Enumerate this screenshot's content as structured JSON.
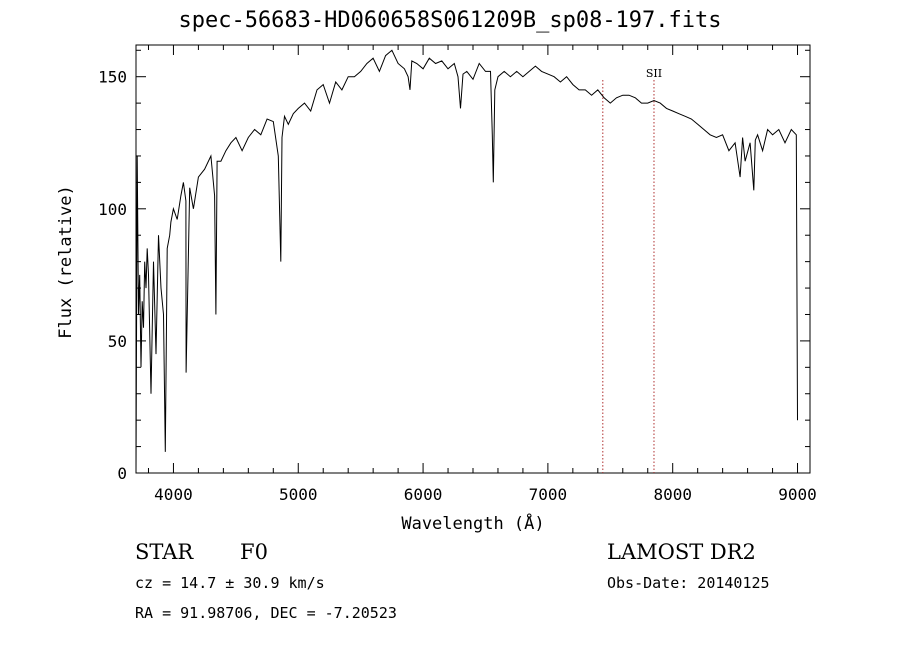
{
  "chart_data": {
    "type": "line",
    "title": "spec-56683-HD060658S061209B_sp08-197.fits",
    "xlabel": "Wavelength (Å)",
    "ylabel": "Flux (relative)",
    "xlim": [
      3700,
      9100
    ],
    "ylim": [
      0,
      162
    ],
    "x_ticks": [
      4000,
      5000,
      6000,
      7000,
      8000,
      9000
    ],
    "y_ticks": [
      0,
      50,
      100,
      150
    ],
    "line_markers": [
      {
        "x": 7440,
        "label": ""
      },
      {
        "x": 7850,
        "label": "SII"
      }
    ],
    "series": [
      {
        "x": [
          3700,
          3710,
          3720,
          3730,
          3740,
          3750,
          3760,
          3770,
          3780,
          3790,
          3800,
          3820,
          3840,
          3860,
          3880,
          3900,
          3920,
          3935,
          3950,
          3970,
          3980,
          4000,
          4030,
          4060,
          4080,
          4100,
          4101,
          4130,
          4160,
          4200,
          4250,
          4300,
          4330,
          4340,
          4350,
          4380,
          4420,
          4460,
          4500,
          4550,
          4600,
          4650,
          4700,
          4750,
          4800,
          4840,
          4860,
          4870,
          4890,
          4920,
          4960,
          5000,
          5050,
          5100,
          5150,
          5200,
          5250,
          5300,
          5350,
          5400,
          5450,
          5500,
          5550,
          5600,
          5650,
          5700,
          5750,
          5800,
          5850,
          5880,
          5895,
          5910,
          5950,
          6000,
          6050,
          6100,
          6150,
          6200,
          6250,
          6280,
          6300,
          6320,
          6350,
          6400,
          6450,
          6500,
          6540,
          6555,
          6563,
          6575,
          6600,
          6650,
          6700,
          6750,
          6800,
          6850,
          6900,
          6950,
          7000,
          7050,
          7100,
          7150,
          7200,
          7250,
          7300,
          7350,
          7400,
          7450,
          7500,
          7550,
          7600,
          7650,
          7700,
          7750,
          7800,
          7850,
          7900,
          7950,
          8000,
          8050,
          8100,
          8150,
          8200,
          8250,
          8300,
          8350,
          8400,
          8450,
          8500,
          8540,
          8560,
          8580,
          8620,
          8650,
          8662,
          8680,
          8720,
          8760,
          8800,
          8850,
          8900,
          8950,
          8990,
          9000
        ],
        "values": [
          0,
          120,
          60,
          75,
          40,
          65,
          55,
          80,
          70,
          85,
          75,
          30,
          80,
          45,
          90,
          70,
          60,
          8,
          85,
          90,
          95,
          100,
          96,
          105,
          110,
          103,
          38,
          108,
          100,
          112,
          115,
          120,
          105,
          60,
          118,
          118,
          122,
          125,
          127,
          122,
          127,
          130,
          128,
          134,
          133,
          120,
          80,
          127,
          135,
          132,
          136,
          138,
          140,
          137,
          145,
          147,
          140,
          148,
          145,
          150,
          150,
          152,
          155,
          157,
          152,
          158,
          160,
          155,
          153,
          150,
          145,
          156,
          155,
          153,
          157,
          155,
          156,
          153,
          155,
          150,
          138,
          151,
          152,
          149,
          155,
          152,
          152,
          128,
          110,
          145,
          150,
          152,
          150,
          152,
          150,
          152,
          154,
          152,
          151,
          150,
          148,
          150,
          147,
          145,
          145,
          143,
          145,
          142,
          140,
          142,
          143,
          143,
          142,
          140,
          140,
          141,
          140,
          138,
          137,
          136,
          135,
          134,
          132,
          130,
          128,
          127,
          128,
          122,
          125,
          112,
          127,
          118,
          125,
          107,
          126,
          128,
          122,
          130,
          128,
          130,
          125,
          130,
          128,
          20
        ]
      }
    ]
  },
  "footer": {
    "object_class": "STAR",
    "subclass": "F0",
    "survey": "LAMOST DR2",
    "redshift": "cz = 14.7 ± 30.9 km/s",
    "obs_date": "Obs-Date: 20140125",
    "coords": "RA =  91.98706, DEC =  -7.20523"
  }
}
